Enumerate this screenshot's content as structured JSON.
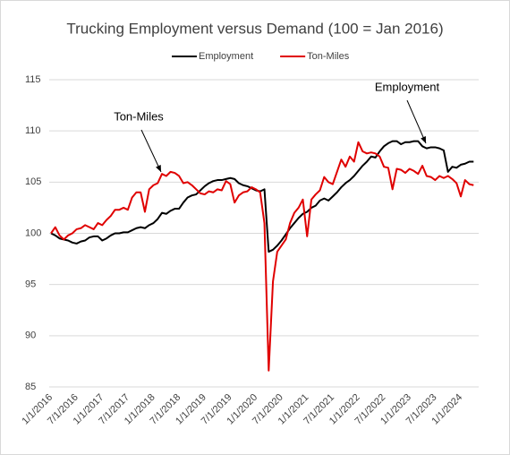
{
  "chart_data": {
    "type": "line",
    "title": "Trucking Employment versus Demand (100 = Jan 2016)",
    "categories": [
      "1/1/2016",
      null,
      null,
      null,
      null,
      null,
      "7/1/2016",
      null,
      null,
      null,
      null,
      null,
      "1/1/2017",
      null,
      null,
      null,
      null,
      null,
      "7/1/2017",
      null,
      null,
      null,
      null,
      null,
      "1/1/2018",
      null,
      null,
      null,
      null,
      null,
      "7/1/2018",
      null,
      null,
      null,
      null,
      null,
      "1/1/2019",
      null,
      null,
      null,
      null,
      null,
      "7/1/2019",
      null,
      null,
      null,
      null,
      null,
      "1/1/2020",
      null,
      null,
      null,
      null,
      null,
      "7/1/2020",
      null,
      null,
      null,
      null,
      null,
      "1/1/2021",
      null,
      null,
      null,
      null,
      null,
      "7/1/2021",
      null,
      null,
      null,
      null,
      null,
      "1/1/2022",
      null,
      null,
      null,
      null,
      null,
      "7/1/2022",
      null,
      null,
      null,
      null,
      null,
      "1/1/2023",
      null,
      null,
      null,
      null,
      null,
      "7/1/2023",
      null,
      null,
      null,
      null,
      null,
      "1/1/2024",
      null,
      null,
      null
    ],
    "series": [
      {
        "name": "Employment",
        "color": "#000000",
        "values": [
          100,
          99.8,
          99.5,
          99.4,
          99.3,
          99.1,
          99.0,
          99.2,
          99.3,
          99.6,
          99.7,
          99.7,
          99.3,
          99.5,
          99.8,
          100.0,
          100.0,
          100.1,
          100.1,
          100.3,
          100.5,
          100.6,
          100.5,
          100.8,
          101.0,
          101.4,
          102.0,
          101.9,
          102.2,
          102.4,
          102.4,
          103.0,
          103.5,
          103.7,
          103.8,
          104.2,
          104.6,
          104.9,
          105.1,
          105.2,
          105.2,
          105.3,
          105.4,
          105.3,
          104.9,
          104.7,
          104.6,
          104.4,
          104.2,
          104.1,
          104.3,
          98.2,
          98.4,
          98.8,
          99.3,
          99.9,
          100.5,
          101.0,
          101.5,
          101.9,
          102.1,
          102.5,
          102.7,
          103.2,
          103.4,
          103.2,
          103.6,
          104.0,
          104.5,
          104.9,
          105.2,
          105.6,
          106.1,
          106.6,
          107.0,
          107.5,
          107.4,
          108.0,
          108.5,
          108.8,
          109.0,
          109.0,
          108.7,
          108.9,
          108.9,
          109.0,
          109.0,
          108.5,
          108.3,
          108.4,
          108.4,
          108.3,
          108.1,
          106.0,
          106.5,
          106.4,
          106.7,
          106.8,
          107.0,
          107.0
        ]
      },
      {
        "name": "Ton-Miles",
        "color": "#e00000",
        "values": [
          100,
          100.6,
          99.8,
          99.4,
          99.8,
          100.0,
          100.4,
          100.5,
          100.8,
          100.6,
          100.4,
          101.0,
          100.8,
          101.3,
          101.7,
          102.3,
          102.3,
          102.5,
          102.3,
          103.5,
          104.0,
          104.0,
          102.1,
          104.3,
          104.7,
          104.9,
          105.8,
          105.6,
          106.0,
          105.9,
          105.6,
          104.9,
          105.0,
          104.7,
          104.3,
          103.9,
          103.8,
          104.1,
          104.0,
          104.3,
          104.2,
          105.1,
          104.8,
          103.0,
          103.7,
          104.0,
          104.1,
          104.5,
          104.3,
          104.0,
          101.0,
          86.6,
          95.3,
          98.2,
          98.8,
          99.4,
          101.0,
          102.0,
          102.5,
          103.3,
          99.7,
          103.3,
          103.8,
          104.2,
          105.5,
          105.0,
          104.8,
          106.0,
          107.2,
          106.5,
          107.5,
          107.0,
          108.9,
          108.0,
          107.8,
          107.9,
          107.8,
          107.5,
          106.5,
          106.4,
          104.3,
          106.3,
          106.2,
          105.9,
          106.3,
          106.1,
          105.8,
          106.6,
          105.6,
          105.5,
          105.2,
          105.6,
          105.4,
          105.6,
          105.3,
          104.9,
          103.6,
          105.2,
          104.8,
          104.7
        ]
      }
    ],
    "ylim": [
      85,
      115
    ],
    "yticks": [
      85,
      90,
      95,
      100,
      105,
      110,
      115
    ],
    "grid": true,
    "legend": "top",
    "annotations": [
      "Ton-Miles",
      "Employment"
    ]
  }
}
